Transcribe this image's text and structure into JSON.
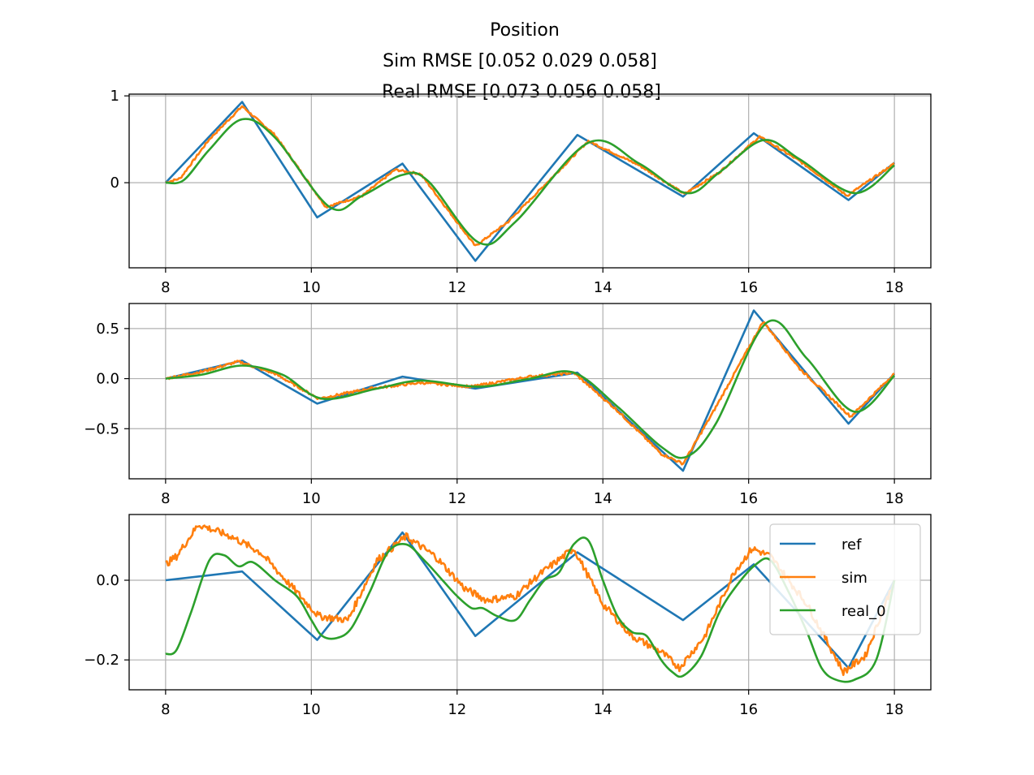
{
  "title_lines": [
    "Position",
    "Sim RMSE [0.052 0.029 0.058]",
    "Real RMSE [0.073 0.056 0.058]"
  ],
  "colors": {
    "ref": "#1f77b4",
    "sim": "#ff7f0e",
    "real_0": "#2ca02c",
    "grid": "#b0b0b0"
  },
  "legend": {
    "placement": "upper-right of bottom panel",
    "entries": [
      "ref",
      "sim",
      "real_0"
    ]
  },
  "chart_data": [
    {
      "type": "line",
      "xlim": [
        7.5,
        18.5
      ],
      "ylim": [
        -0.98,
        1.02
      ],
      "xticks": [
        8,
        10,
        12,
        14,
        16,
        18
      ],
      "xtick_labels": [
        "8",
        "10",
        "12",
        "14",
        "16",
        "18"
      ],
      "yticks": [
        0,
        1
      ],
      "ytick_labels": [
        "0",
        "1"
      ],
      "grid": true,
      "series": [
        {
          "name": "ref",
          "color": "#1f77b4",
          "noise": 0,
          "x": [
            8.0,
            9.05,
            10.08,
            11.25,
            12.25,
            13.65,
            15.1,
            16.07,
            17.37,
            18.0
          ],
          "y": [
            0.0,
            0.93,
            -0.4,
            0.22,
            -0.9,
            0.55,
            -0.16,
            0.57,
            -0.2,
            0.23
          ]
        },
        {
          "name": "sim",
          "color": "#ff7f0e",
          "noise": 0.012,
          "x": [
            8.0,
            8.2,
            8.6,
            9.05,
            9.5,
            10.2,
            10.7,
            11.15,
            11.5,
            12.25,
            12.7,
            13.8,
            14.5,
            15.12,
            15.6,
            16.15,
            16.7,
            17.35,
            18.0
          ],
          "y": [
            0.0,
            0.05,
            0.5,
            0.88,
            0.55,
            -0.28,
            -0.15,
            0.15,
            0.1,
            -0.73,
            -0.45,
            0.48,
            0.2,
            -0.13,
            0.12,
            0.53,
            0.25,
            -0.15,
            0.22
          ]
        },
        {
          "name": "real_0",
          "color": "#2ca02c",
          "noise": 0,
          "x": [
            8.0,
            8.25,
            8.6,
            9.05,
            9.5,
            10.25,
            10.7,
            11.25,
            11.6,
            12.3,
            12.8,
            13.8,
            14.5,
            15.15,
            15.6,
            16.2,
            16.7,
            17.45,
            18.0
          ],
          "y": [
            0.0,
            0.03,
            0.38,
            0.73,
            0.52,
            -0.28,
            -0.15,
            0.09,
            0.02,
            -0.69,
            -0.45,
            0.46,
            0.22,
            -0.12,
            0.12,
            0.49,
            0.27,
            -0.12,
            0.2
          ]
        }
      ]
    },
    {
      "type": "line",
      "xlim": [
        7.5,
        18.5
      ],
      "ylim": [
        -1.0,
        0.75
      ],
      "xticks": [
        8,
        10,
        12,
        14,
        16,
        18
      ],
      "xtick_labels": [
        "8",
        "10",
        "12",
        "14",
        "16",
        "18"
      ],
      "yticks": [
        0.5,
        0.0,
        -0.5
      ],
      "ytick_labels": [
        "0.5",
        "0.0",
        "−0.5"
      ],
      "grid": true,
      "series": [
        {
          "name": "ref",
          "color": "#1f77b4",
          "noise": 0,
          "x": [
            8.0,
            9.05,
            10.08,
            11.25,
            12.25,
            13.65,
            15.1,
            16.07,
            17.37,
            18.0
          ],
          "y": [
            0.0,
            0.18,
            -0.25,
            0.02,
            -0.1,
            0.06,
            -0.92,
            0.68,
            -0.45,
            0.05
          ]
        },
        {
          "name": "sim",
          "color": "#ff7f0e",
          "noise": 0.012,
          "x": [
            8.0,
            8.5,
            9.0,
            9.5,
            10.1,
            10.8,
            11.5,
            12.2,
            13.0,
            13.6,
            14.2,
            14.8,
            15.1,
            15.5,
            16.2,
            16.7,
            17.4,
            18.0
          ],
          "y": [
            0.0,
            0.07,
            0.17,
            0.05,
            -0.2,
            -0.1,
            -0.04,
            -0.08,
            0.02,
            0.06,
            -0.32,
            -0.75,
            -0.85,
            -0.35,
            0.57,
            0.1,
            -0.38,
            0.05
          ]
        },
        {
          "name": "real_0",
          "color": "#2ca02c",
          "noise": 0,
          "x": [
            8.0,
            8.5,
            9.05,
            9.6,
            10.15,
            10.9,
            11.5,
            12.3,
            13.0,
            13.6,
            14.2,
            14.8,
            15.15,
            15.55,
            16.25,
            16.8,
            17.45,
            18.0
          ],
          "y": [
            0.0,
            0.04,
            0.13,
            0.04,
            -0.2,
            -0.1,
            -0.02,
            -0.08,
            0.0,
            0.06,
            -0.28,
            -0.68,
            -0.78,
            -0.45,
            0.56,
            0.2,
            -0.33,
            0.03
          ]
        }
      ]
    },
    {
      "type": "line",
      "xlim": [
        7.5,
        18.5
      ],
      "ylim": [
        -0.275,
        0.165
      ],
      "xticks": [
        8,
        10,
        12,
        14,
        16,
        18
      ],
      "xtick_labels": [
        "8",
        "10",
        "12",
        "14",
        "16",
        "18"
      ],
      "yticks": [
        0.0,
        -0.2
      ],
      "ytick_labels": [
        "0.0",
        "−0.2"
      ],
      "grid": true,
      "series": [
        {
          "name": "ref",
          "color": "#1f77b4",
          "noise": 0,
          "x": [
            8.0,
            9.05,
            10.08,
            11.25,
            12.25,
            13.65,
            15.1,
            16.07,
            17.37,
            18.0
          ],
          "y": [
            0.0,
            0.022,
            -0.15,
            0.12,
            -0.14,
            0.07,
            -0.1,
            0.04,
            -0.22,
            0.0
          ]
        },
        {
          "name": "sim",
          "color": "#ff7f0e",
          "noise": 0.009,
          "x": [
            8.0,
            8.15,
            8.45,
            8.9,
            9.3,
            9.75,
            10.1,
            10.5,
            10.9,
            11.3,
            11.7,
            12.1,
            12.4,
            12.8,
            13.1,
            13.6,
            14.0,
            14.4,
            14.8,
            15.05,
            15.4,
            15.8,
            16.05,
            16.3,
            16.8,
            17.3,
            17.6,
            18.0
          ],
          "y": [
            0.04,
            0.06,
            0.14,
            0.11,
            0.07,
            -0.02,
            -0.09,
            -0.1,
            0.05,
            0.11,
            0.06,
            -0.02,
            -0.05,
            -0.04,
            0.01,
            0.08,
            -0.06,
            -0.14,
            -0.18,
            -0.22,
            -0.14,
            0.02,
            0.08,
            0.06,
            -0.06,
            -0.23,
            -0.19,
            0.0
          ]
        },
        {
          "name": "real_0",
          "color": "#2ca02c",
          "noise": 0,
          "x": [
            8.0,
            8.15,
            8.35,
            8.6,
            8.8,
            9.0,
            9.2,
            9.5,
            9.8,
            10.0,
            10.15,
            10.35,
            10.55,
            10.8,
            11.05,
            11.3,
            11.55,
            11.8,
            12.0,
            12.2,
            12.35,
            12.55,
            12.8,
            13.0,
            13.2,
            13.4,
            13.6,
            13.8,
            14.0,
            14.2,
            14.4,
            14.6,
            14.8,
            14.95,
            15.1,
            15.35,
            15.6,
            15.85,
            16.1,
            16.3,
            16.55,
            16.8,
            17.0,
            17.2,
            17.45,
            17.75,
            18.0
          ],
          "y": [
            -0.185,
            -0.175,
            -0.08,
            0.05,
            0.063,
            0.035,
            0.045,
            0.0,
            -0.04,
            -0.1,
            -0.14,
            -0.145,
            -0.12,
            -0.03,
            0.07,
            0.09,
            0.05,
            0.0,
            -0.04,
            -0.07,
            -0.07,
            -0.09,
            -0.1,
            -0.05,
            0.0,
            0.02,
            0.09,
            0.1,
            0.0,
            -0.09,
            -0.13,
            -0.14,
            -0.2,
            -0.23,
            -0.24,
            -0.19,
            -0.08,
            -0.01,
            0.04,
            0.05,
            -0.03,
            -0.13,
            -0.22,
            -0.25,
            -0.25,
            -0.2,
            0.0
          ]
        }
      ]
    }
  ]
}
